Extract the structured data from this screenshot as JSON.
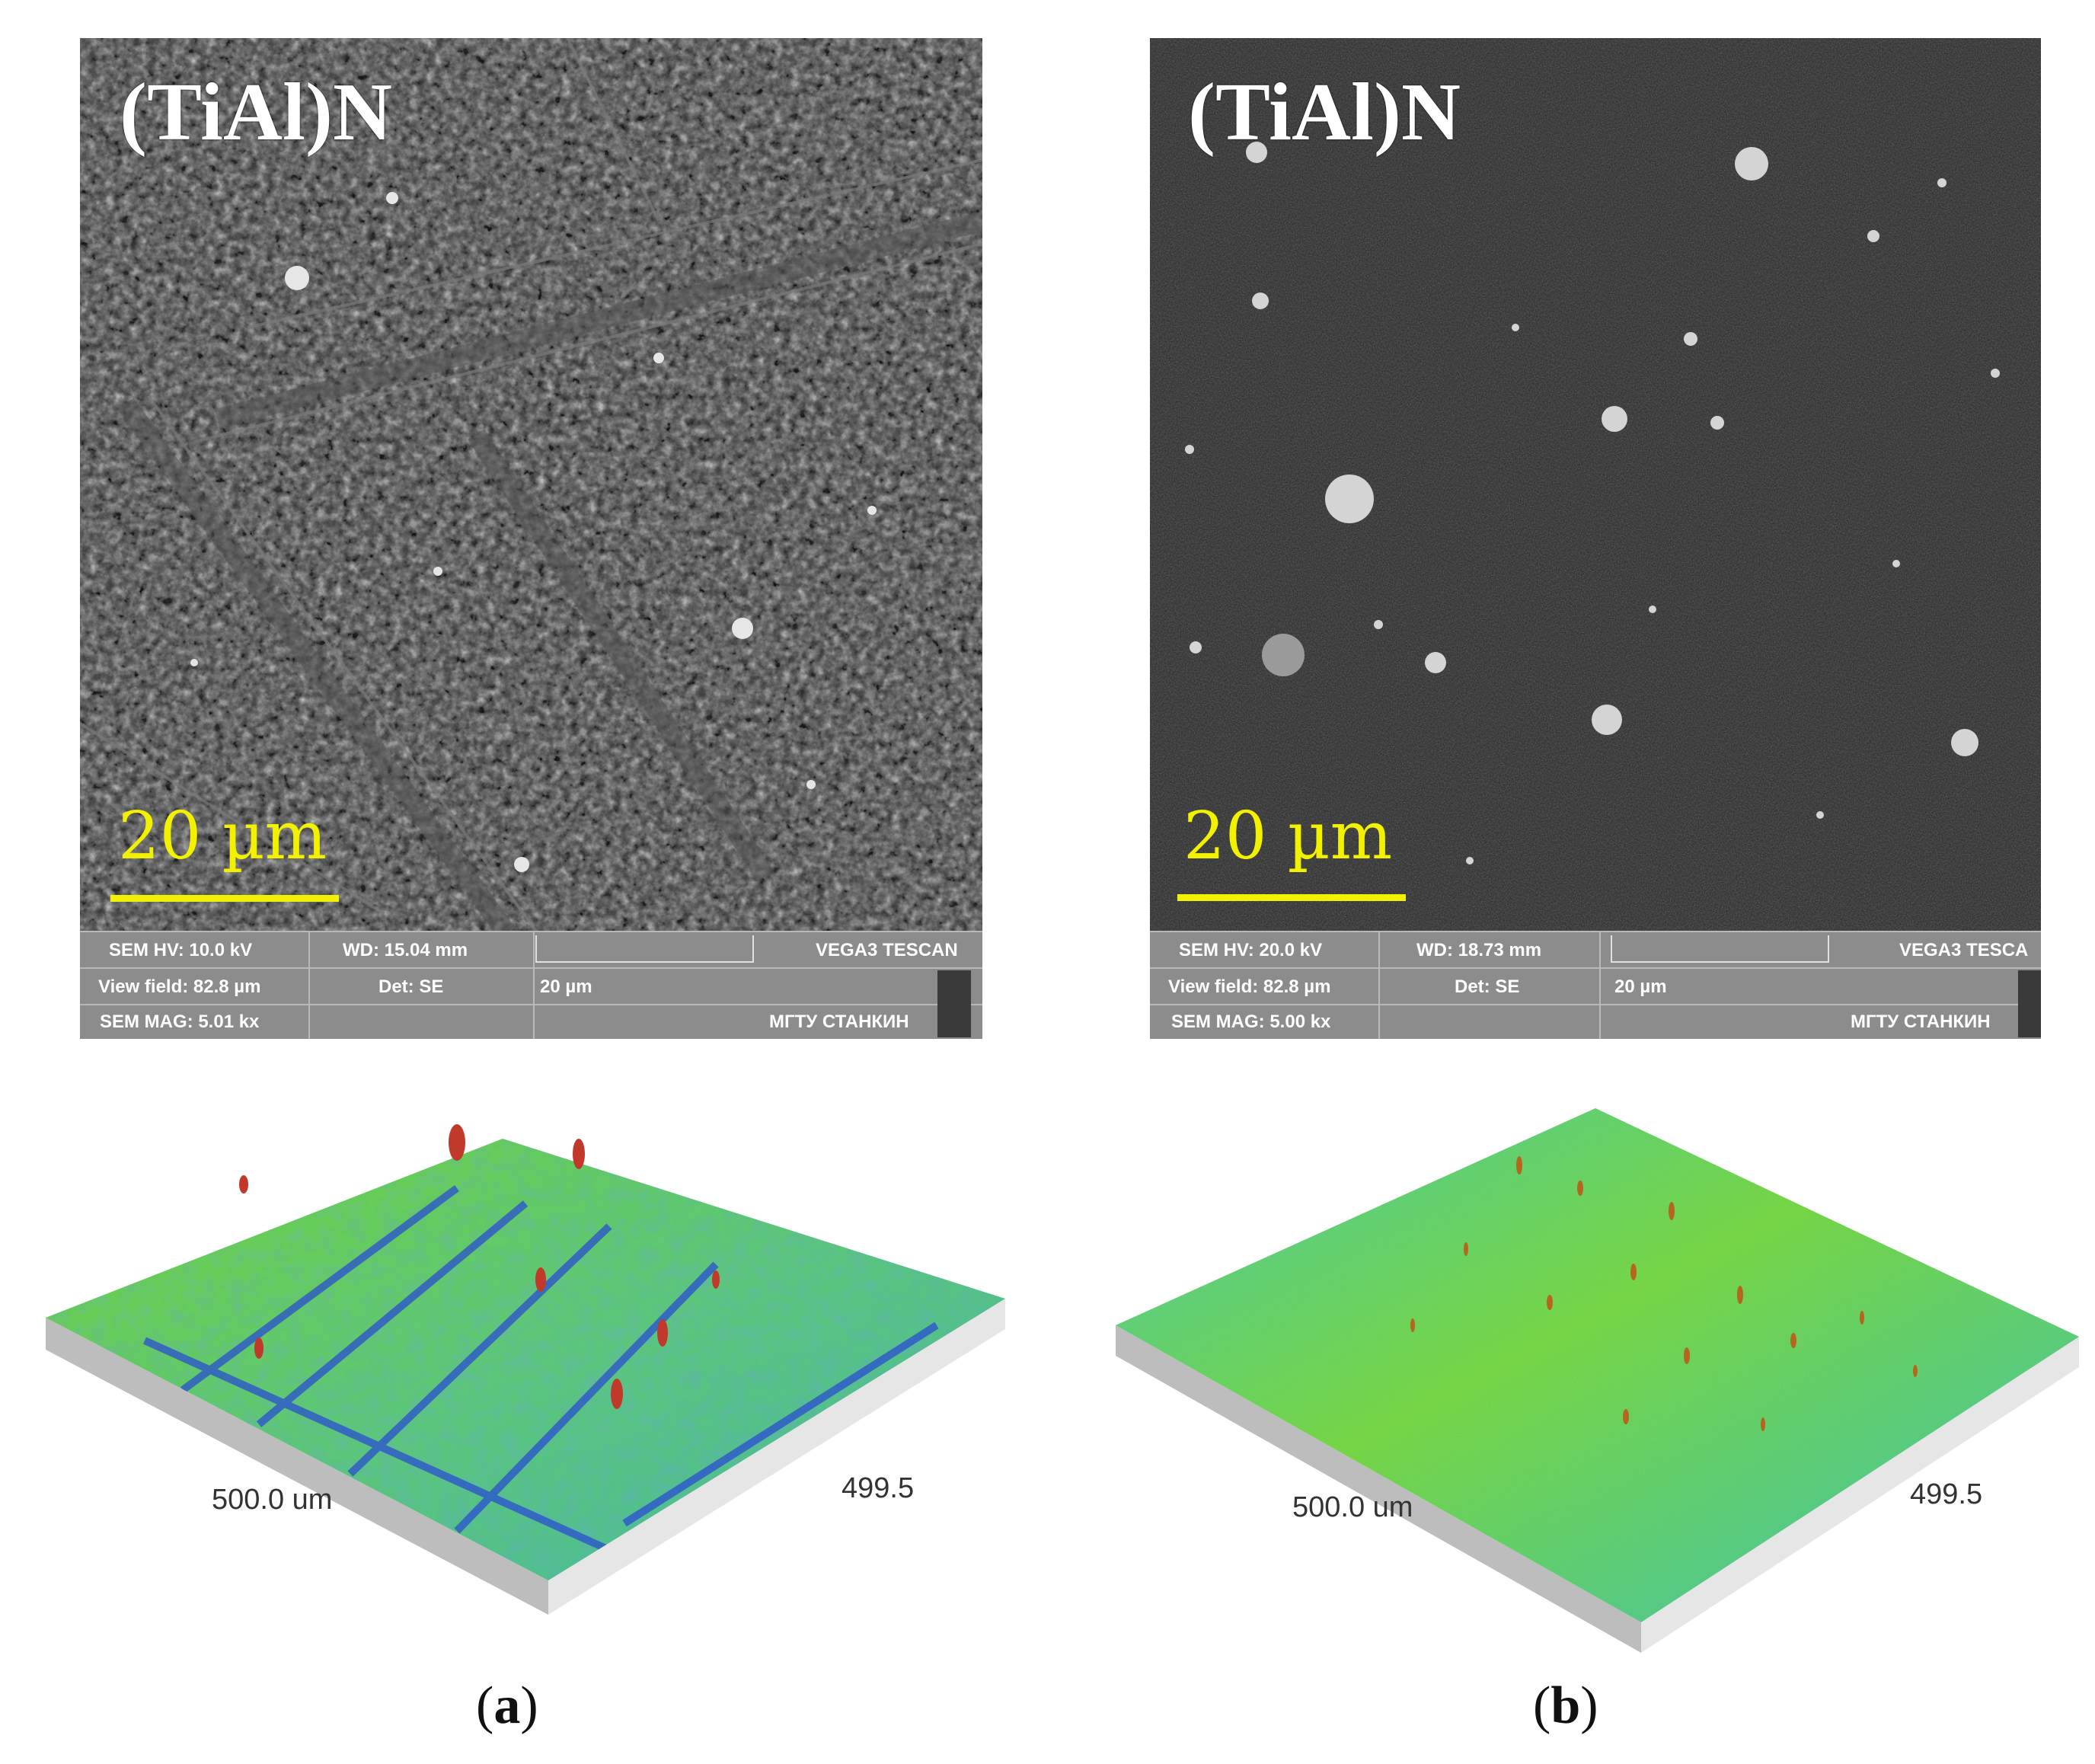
{
  "panels": [
    {
      "id": "a",
      "sem": {
        "title": "(TiAl)N",
        "scale_label": "20 µm",
        "info": {
          "hv": "SEM HV: 10.0 kV",
          "wd": "WD: 15.04 mm",
          "brand": "VEGA3 TESCAN",
          "view_field": "View field: 82.8 µm",
          "det": "Det: SE",
          "ruler_label": "20 µm",
          "mag": "SEM MAG: 5.01 kx",
          "org": "МГТУ СТАНКИН"
        }
      },
      "topo": {
        "dim_x": "500.0 um",
        "dim_y": "499.5"
      },
      "caption_open": "(",
      "caption_letter": "a",
      "caption_close": ")"
    },
    {
      "id": "b",
      "sem": {
        "title": "(TiAl)N",
        "scale_label": "20 µm",
        "info": {
          "hv": "SEM HV: 20.0 kV",
          "wd": "WD: 18.73 mm",
          "brand": "VEGA3 TESCA",
          "view_field": "View field: 82.8 µm",
          "det": "Det: SE",
          "ruler_label": "20 µm",
          "mag": "SEM MAG: 5.00 kx",
          "org": "МГТУ СТАНКИН"
        }
      },
      "topo": {
        "dim_x": "500.0 um",
        "dim_y": "499.5"
      },
      "caption_open": "(",
      "caption_letter": "b",
      "caption_close": ")"
    }
  ],
  "colors": {
    "scale_yellow": "#f2f200",
    "topo_green": "#6fd23c",
    "topo_teal": "#3cc2a8",
    "topo_blue": "#2a4fd0",
    "topo_peak": "#c0392b"
  }
}
